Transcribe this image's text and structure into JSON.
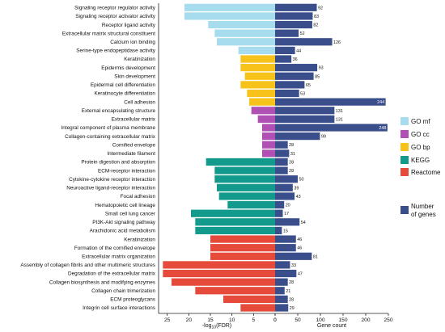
{
  "chart_data": {
    "type": "bar",
    "colors": {
      "GO mf": "#a6dcee",
      "GO cc": "#b04fb4",
      "GO bp": "#f7c21a",
      "KEGG": "#129b8c",
      "Reactome": "#e54a3b",
      "Number of genes": "#3b4e8c"
    },
    "left_axis": {
      "label_prefix": "-log",
      "label_sub": "10",
      "label_suffix": "(FDR)",
      "ticks": [
        25,
        20,
        15,
        10,
        5,
        0
      ],
      "range": [
        0,
        27
      ]
    },
    "right_axis": {
      "label": "Gene count",
      "ticks": [
        0,
        50,
        100,
        150,
        200,
        250
      ],
      "range": [
        0,
        250
      ]
    },
    "legend": [
      {
        "key": "GO mf",
        "label": "GO mf"
      },
      {
        "key": "GO cc",
        "label": "GO cc"
      },
      {
        "key": "GO bp",
        "label": "GO bp"
      },
      {
        "key": "KEGG",
        "label": "KEGG"
      },
      {
        "key": "Reactome",
        "label": "Reactome"
      },
      {
        "key": "Number of genes",
        "label": "Number of genes",
        "lines": [
          "Number",
          "of genes"
        ]
      }
    ],
    "rows": [
      {
        "term": "Signaling receptor regulator activity",
        "group": "GO mf",
        "fdr": 21,
        "count": 92
      },
      {
        "term": "Signaling receptor activator activity",
        "group": "GO mf",
        "fdr": 21,
        "count": 83
      },
      {
        "term": "Receptor ligand activity",
        "group": "GO mf",
        "fdr": 15.5,
        "count": 82
      },
      {
        "term": "Extracellular matrix structural constituent",
        "group": "GO mf",
        "fdr": 14,
        "count": 52
      },
      {
        "term": "Calcium ion binding",
        "group": "GO mf",
        "fdr": 13.5,
        "count": 126
      },
      {
        "term": "Serine-type endopeptidase activity",
        "group": "GO mf",
        "fdr": 8.5,
        "count": 44
      },
      {
        "term": "Keratinization",
        "group": "GO bp",
        "fdr": 8,
        "count": 36
      },
      {
        "term": "Epidermis development",
        "group": "GO bp",
        "fdr": 8,
        "count": 93
      },
      {
        "term": "Skin development",
        "group": "GO bp",
        "fdr": 7,
        "count": 85
      },
      {
        "term": "Epidermal cell differentiation",
        "group": "GO bp",
        "fdr": 8,
        "count": 65
      },
      {
        "term": "Keratinocyte differentiation",
        "group": "GO bp",
        "fdr": 6.5,
        "count": 53
      },
      {
        "term": "Cell adhesion",
        "group": "GO bp",
        "fdr": 6,
        "count": 244
      },
      {
        "term": "External encapsulating structure",
        "group": "GO cc",
        "fdr": 5.5,
        "count": 131
      },
      {
        "term": "Extracellular matrix",
        "group": "GO cc",
        "fdr": 4,
        "count": 131
      },
      {
        "term": "Integral component of plasma membrane",
        "group": "GO cc",
        "fdr": 3,
        "count": 248
      },
      {
        "term": "Collagen-containing extracellular matrix",
        "group": "GO cc",
        "fdr": 3,
        "count": 99
      },
      {
        "term": "Cornified envelope",
        "group": "GO cc",
        "fdr": 3,
        "count": 28
      },
      {
        "term": "Intermediate filament",
        "group": "GO cc",
        "fdr": 3,
        "count": 31
      },
      {
        "term": "Protein digestion and absorption",
        "group": "KEGG",
        "fdr": 16,
        "count": 28
      },
      {
        "term": "ECM-receptor interaction",
        "group": "KEGG",
        "fdr": 14,
        "count": 28
      },
      {
        "term": "Cytokine-cytokine receptor interaction",
        "group": "KEGG",
        "fdr": 14,
        "count": 50
      },
      {
        "term": "Neuroactive ligand-receptor interaction",
        "group": "KEGG",
        "fdr": 13.5,
        "count": 39
      },
      {
        "term": "Focal adhesion",
        "group": "KEGG",
        "fdr": 13,
        "count": 43
      },
      {
        "term": "Hematopoietic cell lineage",
        "group": "KEGG",
        "fdr": 11,
        "count": 20
      },
      {
        "term": "Small cell lung cancer",
        "group": "KEGG",
        "fdr": 19.5,
        "count": 17
      },
      {
        "term": "PI3K-Akt signaling pathway",
        "group": "KEGG",
        "fdr": 18.5,
        "count": 54
      },
      {
        "term": "Arachidonic acid metabolism",
        "group": "KEGG",
        "fdr": 18.5,
        "count": 15
      },
      {
        "term": "Keratinization",
        "group": "Reactome",
        "fdr": 15,
        "count": 46
      },
      {
        "term": "Formation of the cornified envelope",
        "group": "Reactome",
        "fdr": 15,
        "count": 46
      },
      {
        "term": "Extracellular matrix organization",
        "group": "Reactome",
        "fdr": 15,
        "count": 81
      },
      {
        "term": "Assembly of collagen fibrils and other multimeric structures",
        "group": "Reactome",
        "fdr": 26,
        "count": 33
      },
      {
        "term": "Degradation of the extracellular matrix",
        "group": "Reactome",
        "fdr": 26,
        "count": 47
      },
      {
        "term": "Collagen biosynthesis and modifying enzymes",
        "group": "Reactome",
        "fdr": 24,
        "count": 28
      },
      {
        "term": "Collagen chain trimerization",
        "group": "Reactome",
        "fdr": 18.5,
        "count": 21
      },
      {
        "term": "ECM proteoglycans",
        "group": "Reactome",
        "fdr": 12,
        "count": 28
      },
      {
        "term": "Integrin cell surface interactions",
        "group": "Reactome",
        "fdr": 8,
        "count": 29
      }
    ]
  }
}
